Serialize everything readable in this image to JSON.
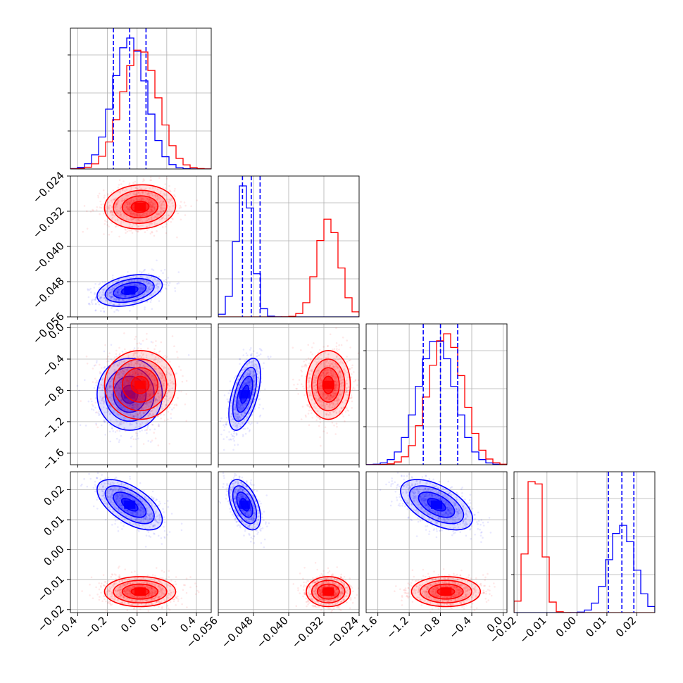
{
  "chart_data": {
    "type": "corner",
    "colors": {
      "blue": "#0000ff",
      "red": "#ff0000"
    },
    "grid": true,
    "parameters": [
      {
        "range": [
          -0.45,
          0.5
        ],
        "ticks": [
          "-0.4",
          "-0.2",
          "0.0",
          "0.2",
          "0.4"
        ],
        "tick_values": [
          -0.4,
          -0.2,
          0.0,
          0.2,
          0.4
        ]
      },
      {
        "range": [
          -0.056,
          -0.024
        ],
        "ticks": [
          "-0.056",
          "-0.048",
          "-0.040",
          "-0.032",
          "-0.024"
        ],
        "tick_values": [
          -0.056,
          -0.048,
          -0.04,
          -0.032,
          -0.024
        ]
      },
      {
        "range": [
          -1.75,
          0.05
        ],
        "ticks": [
          "-1.6",
          "-1.2",
          "-0.8",
          "-0.4",
          "0.0"
        ],
        "tick_values": [
          -1.6,
          -1.2,
          -0.8,
          -0.4,
          0.0
        ]
      },
      {
        "range": [
          -0.021,
          0.026
        ],
        "ticks": [
          "-0.02",
          "-0.01",
          "0.00",
          "0.01",
          "0.02"
        ],
        "tick_values": [
          -0.02,
          -0.01,
          0.0,
          0.01,
          0.02
        ]
      }
    ],
    "series": [
      {
        "color": "blue",
        "means": [
          -0.05,
          -0.05,
          -0.85,
          0.015
        ],
        "stds": [
          0.11,
          0.0018,
          0.23,
          0.0042
        ],
        "corr": {
          "0-1": 0.35,
          "0-2": 0.0,
          "0-3": -0.6,
          "1-2": 0.55,
          "1-3": -0.5,
          "2-3": -0.55
        },
        "quantiles": [
          [
            -0.16,
            -0.05,
            0.06
          ],
          [
            -0.0505,
            -0.0485,
            -0.0465
          ],
          [
            -1.02,
            -0.8,
            -0.58
          ],
          [
            0.0105,
            0.015,
            0.019
          ]
        ]
      },
      {
        "color": "red",
        "means": [
          0.02,
          -0.031,
          -0.73,
          -0.014
        ],
        "stds": [
          0.12,
          0.0025,
          0.22,
          0.0025
        ],
        "corr": {
          "0-1": 0.05,
          "0-2": 0.0,
          "0-3": 0.0,
          "1-2": 0.0,
          "1-3": 0.0,
          "2-3": 0.0
        }
      }
    ],
    "hist_overlay_red": [
      {
        "param": 2,
        "shift": 0.08
      }
    ]
  }
}
